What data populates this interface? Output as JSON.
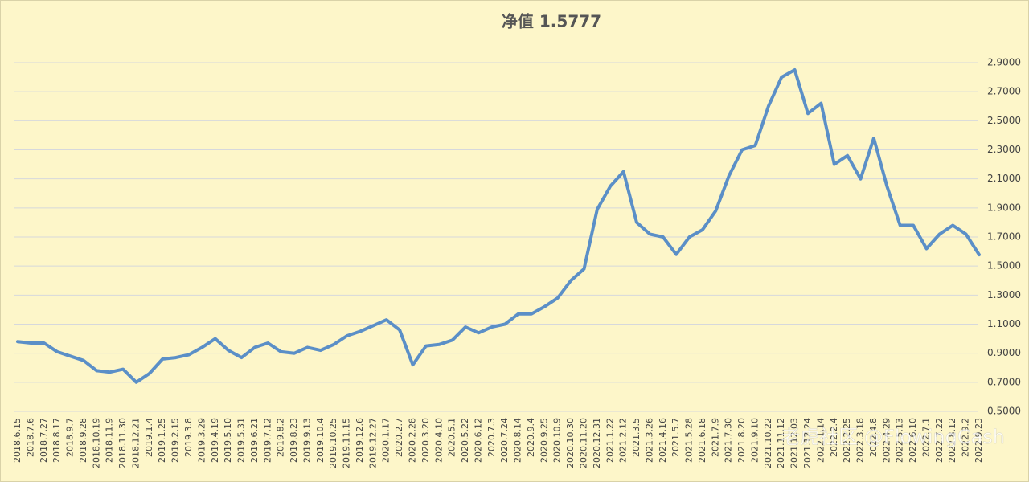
{
  "chart_data": {
    "type": "line",
    "title": "净值 1.5777",
    "categories": [
      "2018.6.15",
      "2018.7.6",
      "2018.7.27",
      "2018.8.17",
      "2018.9.7",
      "2018.9.28",
      "2018.10.19",
      "2018.11.9",
      "2018.11.30",
      "2018.12.21",
      "2019.1.4",
      "2019.1.25",
      "2019.2.15",
      "2019.3.8",
      "2019.3.29",
      "2019.4.19",
      "2019.5.10",
      "2019.5.31",
      "2019.6.21",
      "2019.7.12",
      "2019.8.2",
      "2019.8.23",
      "2019.9.13",
      "2019.10.4",
      "2019.10.25",
      "2019.11.15",
      "2019.12.6",
      "2019.12.27",
      "2020.1.17",
      "2020.2.7",
      "2020.2.28",
      "2020.3.20",
      "2020.4.10",
      "2020.5.1",
      "2020.5.22",
      "2020.6.12",
      "2020.7.3",
      "2020.7.24",
      "2020.8.14",
      "2020.9.4",
      "2020.9.25",
      "2020.10.9",
      "2020.10.30",
      "2020.11.20",
      "2020.12.31",
      "2021.1.22",
      "2021.2.12",
      "2021.3.5",
      "2021.3.26",
      "2021.4.16",
      "2021.5.7",
      "2021.5.28",
      "2021.6.18",
      "2021.7.9",
      "2021.7.30",
      "2021.8.20",
      "2021.9.10",
      "2021.10.22",
      "2021.11.12",
      "2021.12.03",
      "2021.12.24",
      "2022.1.14",
      "2022.2.4",
      "2022.2.25",
      "2022.3.18",
      "2022.4.8",
      "2022.4.29",
      "2022.5.13",
      "2022.6.10",
      "2022.7.1",
      "2022.7.22",
      "2022.8.12",
      "2022.9.2",
      "2022.9.23"
    ],
    "series": [
      {
        "name": "净值",
        "color": "#5b8fc7",
        "values": [
          0.98,
          0.97,
          0.97,
          0.91,
          0.88,
          0.85,
          0.78,
          0.77,
          0.79,
          0.7,
          0.76,
          0.86,
          0.87,
          0.89,
          0.94,
          1.0,
          0.92,
          0.87,
          0.94,
          0.97,
          0.91,
          0.9,
          0.94,
          0.92,
          0.96,
          1.02,
          1.05,
          1.09,
          1.13,
          1.06,
          0.82,
          0.95,
          0.96,
          0.99,
          1.08,
          1.04,
          1.08,
          1.1,
          1.17,
          1.17,
          1.22,
          1.28,
          1.4,
          1.48,
          1.89,
          2.05,
          2.15,
          1.8,
          1.72,
          1.7,
          1.58,
          1.7,
          1.75,
          1.88,
          2.12,
          2.3,
          2.33,
          2.6,
          2.8,
          2.85,
          2.55,
          2.62,
          2.2,
          2.26,
          2.1,
          2.38,
          2.05,
          1.78,
          1.78,
          1.62,
          1.72,
          1.78,
          1.72,
          1.5777
        ]
      }
    ],
    "ylim": [
      0.5,
      2.9
    ],
    "yticks": [
      {
        "value": 0.5,
        "label": "0.5000"
      },
      {
        "value": 0.7,
        "label": "0.7000"
      },
      {
        "value": 0.9,
        "label": "0.9000"
      },
      {
        "value": 1.1,
        "label": "1.1000"
      },
      {
        "value": 1.3,
        "label": "1.3000"
      },
      {
        "value": 1.5,
        "label": "1.5000"
      },
      {
        "value": 1.7,
        "label": "1.7000"
      },
      {
        "value": 1.9,
        "label": "1.9000"
      },
      {
        "value": 2.1,
        "label": "2.1000"
      },
      {
        "value": 2.3,
        "label": "2.3000"
      },
      {
        "value": 2.5,
        "label": "2.5000"
      },
      {
        "value": 2.7,
        "label": "2.7000"
      },
      {
        "value": 2.9,
        "label": "2.9000"
      }
    ],
    "grid": true,
    "watermark": "老虎社区 @FlowingCash"
  }
}
